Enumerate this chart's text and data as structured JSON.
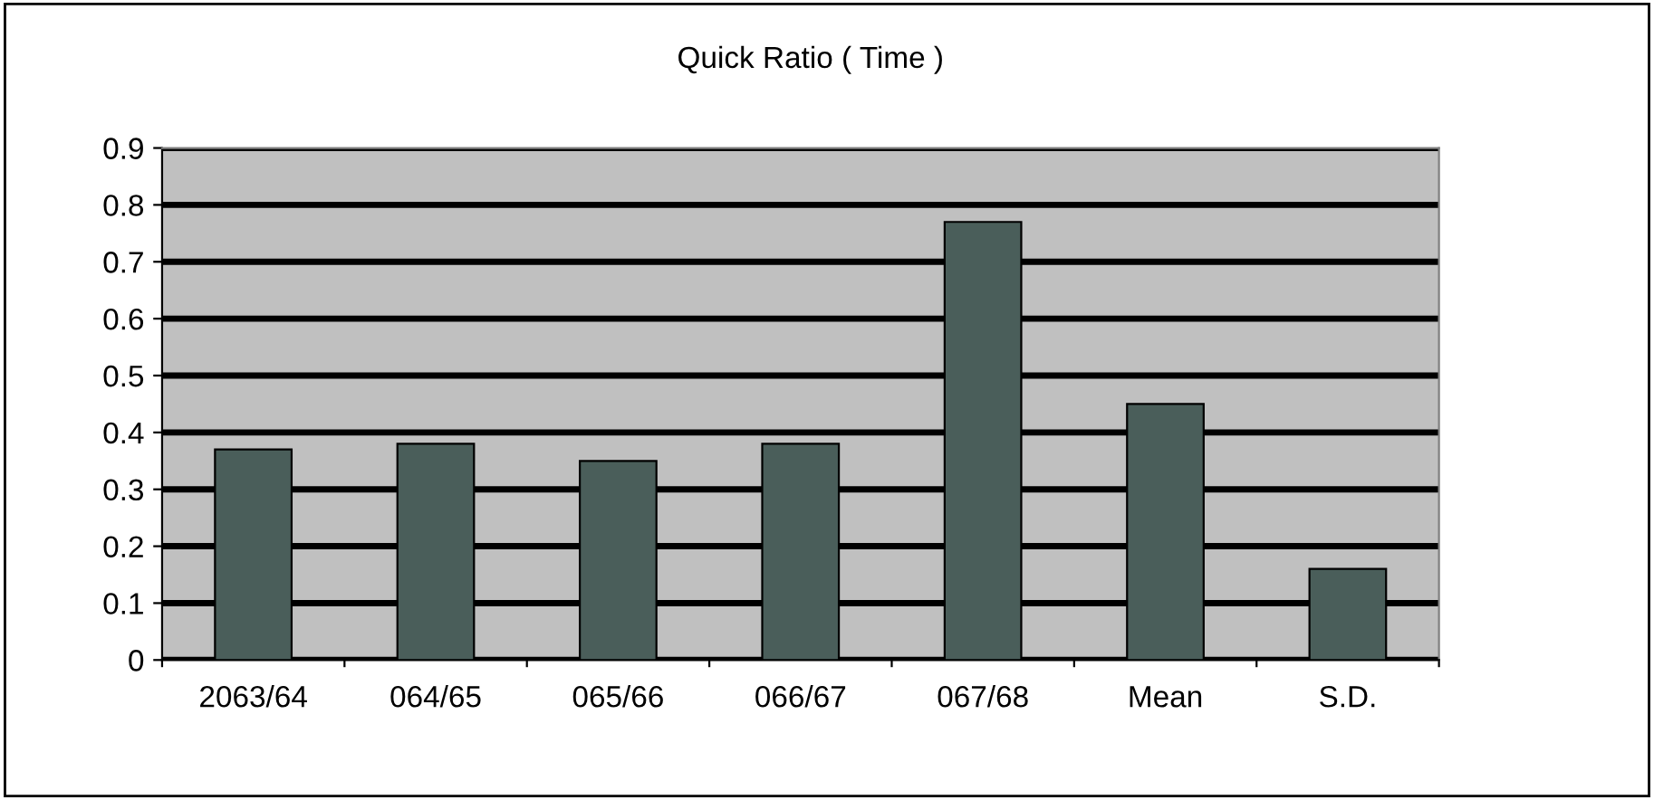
{
  "chart_data": {
    "type": "bar",
    "title": "Quick Ratio ( Time )",
    "categories": [
      "2063/64",
      "064/65",
      "065/66",
      "066/67",
      "067/68",
      "Mean",
      "S.D."
    ],
    "series": [
      {
        "color": "#4a5e5a",
        "values": [
          0.37,
          0.38,
          0.35,
          0.38,
          0.77,
          0.45,
          0.16
        ]
      }
    ],
    "ylim": [
      0,
      0.9
    ],
    "yticks": [
      0,
      0.1,
      0.2,
      0.3,
      0.4,
      0.5,
      0.6,
      0.7,
      0.8,
      0.9
    ],
    "grid": "y"
  }
}
